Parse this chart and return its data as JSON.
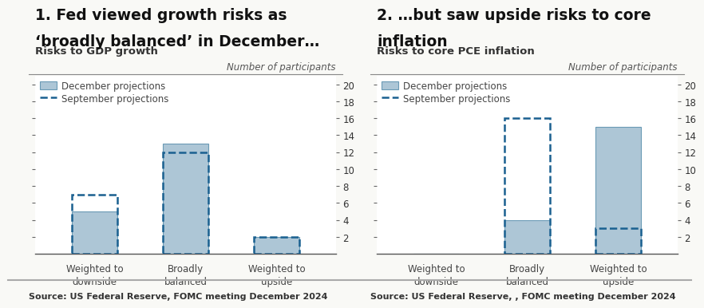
{
  "chart1": {
    "title_line1": "1. Fed viewed growth risks as",
    "title_line2": "‘broadly balanced’ in December…",
    "subtitle": "Risks to GDP growth",
    "ylabel": "Number of participants",
    "source": "Source: US Federal Reserve, FOMC meeting December 2024",
    "categories": [
      "Weighted to\ndownside",
      "Broadly\nbalanced",
      "Weighted to\nupside"
    ],
    "dec_values": [
      5,
      13,
      2
    ],
    "sep_values": [
      7,
      12,
      2
    ],
    "ylim": [
      0,
      21
    ],
    "yticks": [
      2,
      4,
      6,
      8,
      10,
      12,
      14,
      16,
      18,
      20
    ],
    "bar_color": "#adc6d6",
    "bar_edgecolor": "#6a9ab5",
    "sep_color": "#1a6090",
    "legend_label_dec": "December projections",
    "legend_label_sep": "September projections"
  },
  "chart2": {
    "title_line1": "2. …but saw upside risks to core",
    "title_line2": "inflation",
    "subtitle": "Risks to core PCE inflation",
    "ylabel": "Number of participants",
    "source": "Source: US Federal Reserve, , FOMC meeting December 2024",
    "categories": [
      "Weighted to\ndownside",
      "Broadly\nbalanced",
      "Weighted to\nupside"
    ],
    "dec_values": [
      0,
      4,
      15
    ],
    "sep_values": [
      0,
      16,
      3
    ],
    "ylim": [
      0,
      21
    ],
    "yticks": [
      2,
      4,
      6,
      8,
      10,
      12,
      14,
      16,
      18,
      20
    ],
    "bar_color": "#adc6d6",
    "bar_edgecolor": "#6a9ab5",
    "sep_color": "#1a6090",
    "legend_label_dec": "December projections",
    "legend_label_sep": "September projections"
  },
  "bg_color": "#f9f9f6",
  "panel_bg": "#ffffff",
  "title_fontsize": 13.5,
  "subtitle_fontsize": 9.5,
  "tick_fontsize": 8.5,
  "source_fontsize": 8.0,
  "legend_fontsize": 8.5,
  "ylabel_fontsize": 8.5
}
